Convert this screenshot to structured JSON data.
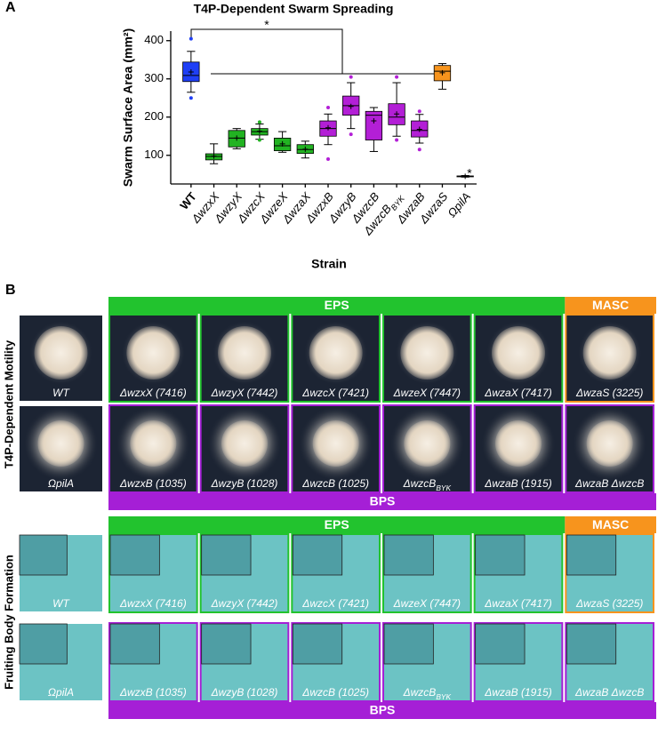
{
  "panel_labels": [
    "A",
    "B"
  ],
  "chart_data": {
    "type": "box",
    "title": "T4P-Dependent Swarm Spreading",
    "xlabel": "Strain",
    "ylabel": "Swarm Surface Area (mm²)",
    "categories": [
      "WT",
      "ΔwzxX",
      "ΔwzyX",
      "ΔwzcX",
      "ΔwzeX",
      "ΔwzaX",
      "ΔwzxB",
      "ΔwzyB",
      "ΔwzcB",
      {
        "label": "ΔwzcB",
        "sub": "BYK"
      },
      "ΔwzaB",
      "ΔwzaS",
      "ΩpilA"
    ],
    "colors": [
      "#1f3ff5",
      "#22b322",
      "#22b322",
      "#22b322",
      "#22b322",
      "#22b322",
      "#b31fd6",
      "#b31fd6",
      "#b31fd6",
      "#b31fd6",
      "#b31fd6",
      "#f7941d",
      "#555555"
    ],
    "min": [
      265,
      78,
      117,
      142,
      108,
      93,
      128,
      170,
      110,
      150,
      132,
      273,
      43
    ],
    "q1": [
      293,
      88,
      122,
      153,
      112,
      105,
      150,
      205,
      140,
      180,
      148,
      295,
      44
    ],
    "median": [
      309,
      97,
      145,
      162,
      125,
      115,
      170,
      230,
      205,
      200,
      165,
      320,
      45
    ],
    "q3": [
      344,
      104,
      165,
      170,
      145,
      128,
      190,
      255,
      215,
      235,
      190,
      335,
      46
    ],
    "max": [
      372,
      130,
      170,
      182,
      162,
      137,
      208,
      290,
      225,
      290,
      207,
      340,
      47
    ],
    "mean": [
      318,
      98,
      145,
      163,
      130,
      116,
      172,
      228,
      190,
      208,
      168,
      316,
      45
    ],
    "outliers": [
      [
        405,
        250
      ],
      [],
      [],
      [
        187,
        140
      ],
      [],
      [],
      [
        90,
        225
      ],
      [
        155,
        305
      ],
      [],
      [
        140,
        305
      ],
      [
        115,
        215
      ],
      [],
      []
    ],
    "ylim": [
      25,
      425
    ],
    "yticks": [
      100,
      200,
      300,
      400
    ],
    "annotations": [
      "*",
      "*"
    ]
  },
  "panel_b": {
    "side_labels": [
      "T4P-Dependent Motility",
      "Fruiting Body Formation"
    ],
    "sections": [
      {
        "headers": [
          "EPS",
          "MASC"
        ],
        "footer": "BPS",
        "left": [
          "WT",
          "ΩpilA"
        ],
        "rows": [
          [
            "ΔwzxX (7416)",
            "ΔwzyX (7442)",
            "ΔwzcX (7421)",
            "ΔwzeX (7447)",
            "ΔwzaX (7417)",
            "ΔwzaS (3225)"
          ],
          [
            "ΔwzxB (1035)",
            "ΔwzyB (1028)",
            "ΔwzcB (1025)",
            {
              "label": "ΔwzcB",
              "sub": "BYK"
            },
            "ΔwzaB (1915)",
            "ΔwzaB ΔwzcB"
          ]
        ]
      },
      {
        "headers": [
          "EPS",
          "MASC"
        ],
        "footer": "BPS",
        "left": [
          "WT",
          "ΩpilA"
        ],
        "rows": [
          [
            "ΔwzxX (7416)",
            "ΔwzyX (7442)",
            "ΔwzcX (7421)",
            "ΔwzeX (7447)",
            "ΔwzaX (7417)",
            "ΔwzaS (3225)"
          ],
          [
            "ΔwzxB (1035)",
            "ΔwzyB (1028)",
            "ΔwzcB (1025)",
            {
              "label": "ΔwzcB",
              "sub": "BYK"
            },
            "ΔwzaB (1915)",
            "ΔwzaB ΔwzcB"
          ]
        ]
      }
    ]
  }
}
